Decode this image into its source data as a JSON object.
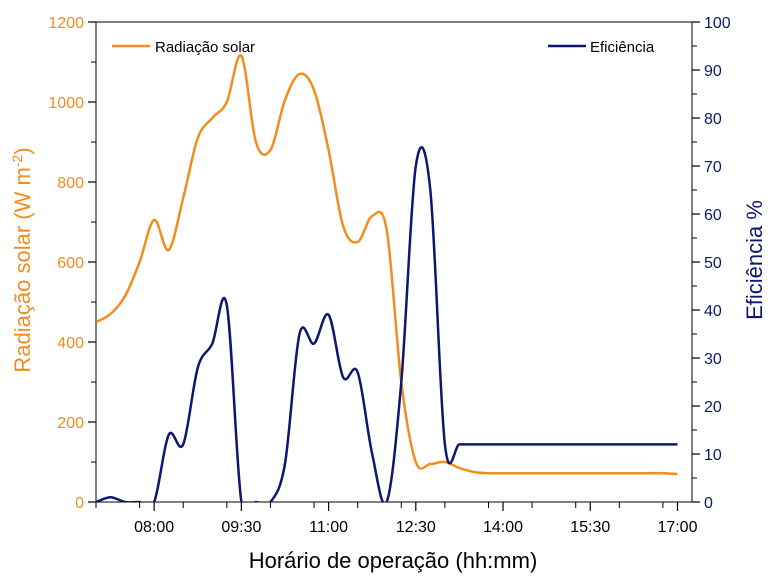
{
  "chart_data": {
    "type": "line",
    "x": [
      "07:00",
      "07:15",
      "07:30",
      "07:45",
      "08:00",
      "08:15",
      "08:30",
      "08:45",
      "09:00",
      "09:15",
      "09:30",
      "09:45",
      "10:00",
      "10:15",
      "10:30",
      "10:45",
      "11:00",
      "11:15",
      "11:30",
      "11:45",
      "12:00",
      "12:15",
      "12:30",
      "12:45",
      "13:00",
      "13:15",
      "13:30",
      "13:45",
      "14:00",
      "14:15",
      "14:30",
      "14:45",
      "15:00",
      "15:15",
      "15:30",
      "15:45",
      "16:00",
      "16:15",
      "16:30",
      "16:45",
      "17:00"
    ],
    "series": [
      {
        "name": "Radiação solar",
        "axis": "left",
        "color": "#f28c1e",
        "values": [
          450,
          470,
          515,
          600,
          705,
          630,
          760,
          910,
          960,
          1000,
          1115,
          900,
          880,
          1005,
          1070,
          1030,
          880,
          690,
          650,
          715,
          680,
          300,
          100,
          95,
          100,
          85,
          75,
          72,
          72,
          72,
          72,
          72,
          72,
          72,
          72,
          72,
          72,
          72,
          72,
          72,
          70
        ]
      },
      {
        "name": "Eficiência",
        "axis": "right",
        "color": "#0d1770",
        "values": [
          0,
          1,
          0,
          0,
          0,
          14,
          12,
          28,
          33,
          41,
          0,
          0,
          0,
          8,
          35,
          33,
          39,
          26,
          27,
          10,
          0,
          25,
          70,
          65,
          12,
          12,
          12,
          12,
          12,
          12,
          12,
          12,
          12,
          12,
          12,
          12,
          12,
          12,
          12,
          12,
          12
        ]
      }
    ],
    "x_ticks": [
      "08:00",
      "09:30",
      "11:00",
      "12:30",
      "14:00",
      "15:30",
      "17:00"
    ],
    "xlabel": "Horário de operação (hh:mm)",
    "ylabel_left": "Radiação solar (W m-2)",
    "ylabel_left_main": "Radiação solar (W m",
    "ylabel_left_sup": "-2",
    "ylabel_left_end": ")",
    "ylabel_right": "Eficiência %",
    "ylim_left": [
      0,
      1200
    ],
    "yticks_left": [
      "0",
      "200",
      "400",
      "600",
      "800",
      "1000",
      "1200"
    ],
    "ylim_right": [
      0,
      100
    ],
    "yticks_right": [
      "0",
      "10",
      "20",
      "30",
      "40",
      "50",
      "60",
      "70",
      "80",
      "90",
      "100"
    ],
    "legend_left": "Radiação solar",
    "legend_right": "Eficiência",
    "grid": false
  }
}
